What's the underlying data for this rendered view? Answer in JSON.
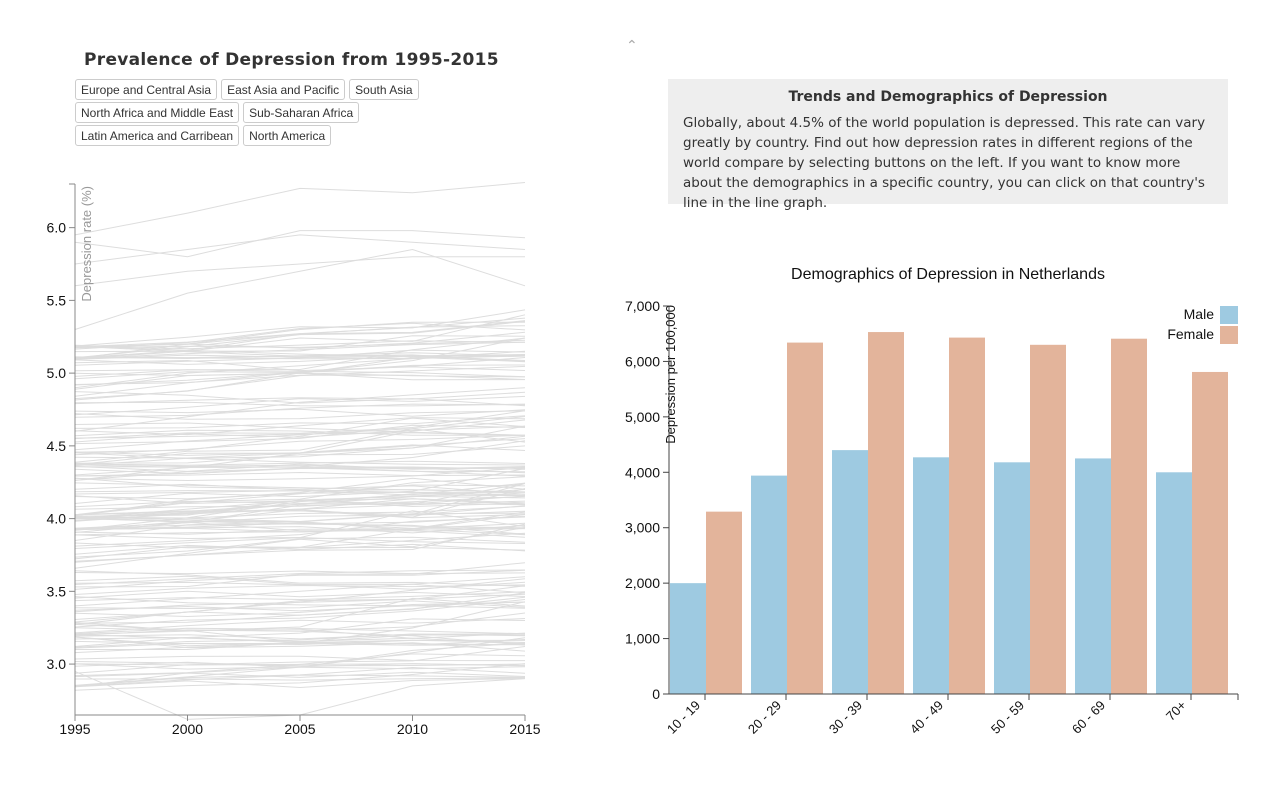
{
  "left_title": "Prevalence of Depression from 1995-2015",
  "regions": [
    "Europe and Central Asia",
    "East Asia and Pacific",
    "South Asia",
    "North Africa and Middle East",
    "Sub-Saharan Africa",
    "Latin America and Carribean",
    "North America"
  ],
  "info": {
    "title": "Trends and Demographics of Depression",
    "text": "Globally, about 4.5% of the world population is depressed. This rate can vary greatly by country. Find out how depression rates in different regions of the world compare by selecting buttons on the left. If you want to know more about the demographics in a specific country, you can click on that country's line in the line graph."
  },
  "icons": {
    "collapse": "chevron-up-icon"
  },
  "colors": {
    "male": "#9ecae1",
    "female": "#e3b49b",
    "line": "#dddddd"
  },
  "chart_data": [
    {
      "type": "line",
      "title": "Prevalence of Depression from 1995-2015",
      "ylabel": "Depression rate (%)",
      "xlabel": "",
      "x": [
        1995,
        2000,
        2005,
        2010,
        2015
      ],
      "xlim": [
        1995,
        2015
      ],
      "ylim": [
        2.65,
        6.3
      ],
      "yticks": [
        3.0,
        3.5,
        4.0,
        4.5,
        5.0,
        5.5,
        6.0
      ],
      "ytick_labels": [
        "3.0",
        "3.5",
        "4.0",
        "4.5",
        "5.0",
        "5.5",
        "6.0"
      ],
      "xtick_labels": [
        "1995",
        "2000",
        "2005",
        "2010",
        "2015"
      ],
      "series_count": 180,
      "sample_series": [
        [
          5.95,
          6.1,
          6.27,
          6.24,
          6.31
        ],
        [
          5.9,
          5.8,
          5.98,
          5.98,
          5.93
        ],
        [
          5.75,
          5.85,
          5.95,
          5.9,
          5.85
        ],
        [
          5.6,
          5.7,
          5.75,
          5.8,
          5.8
        ],
        [
          5.3,
          5.55,
          5.7,
          5.85,
          5.6
        ],
        [
          5.1,
          5.2,
          5.3,
          5.35,
          5.35
        ],
        [
          4.9,
          5.0,
          5.05,
          5.1,
          5.15
        ],
        [
          4.6,
          4.7,
          4.8,
          4.85,
          4.9
        ],
        [
          4.3,
          4.35,
          4.45,
          4.5,
          4.55
        ],
        [
          4.0,
          4.05,
          4.1,
          4.15,
          4.2
        ],
        [
          3.7,
          3.75,
          3.8,
          3.85,
          3.9
        ],
        [
          3.4,
          3.45,
          3.5,
          3.55,
          3.6
        ],
        [
          3.1,
          3.1,
          3.15,
          3.2,
          3.2
        ],
        [
          2.95,
          2.62,
          2.65,
          2.85,
          2.9
        ]
      ],
      "grid": false
    },
    {
      "type": "bar",
      "title": "Demographics of Depression in Netherlands",
      "ylabel": "Depression per 100,000",
      "xlabel": "",
      "categories": [
        "10 - 19",
        "20 - 29",
        "30 - 39",
        "40 - 49",
        "50 - 59",
        "60 - 69",
        "70+"
      ],
      "series": [
        {
          "name": "Male",
          "values": [
            2000,
            3940,
            4400,
            4270,
            4180,
            4250,
            4000
          ]
        },
        {
          "name": "Female",
          "values": [
            3290,
            6340,
            6530,
            6430,
            6300,
            6410,
            5810
          ]
        }
      ],
      "ylim": [
        0,
        7000
      ],
      "yticks": [
        0,
        1000,
        2000,
        3000,
        4000,
        5000,
        6000,
        7000
      ],
      "ytick_labels": [
        "0",
        "1,000",
        "2,000",
        "3,000",
        "4,000",
        "5,000",
        "6,000",
        "7,000"
      ],
      "legend": "top-right",
      "grid": false
    }
  ]
}
